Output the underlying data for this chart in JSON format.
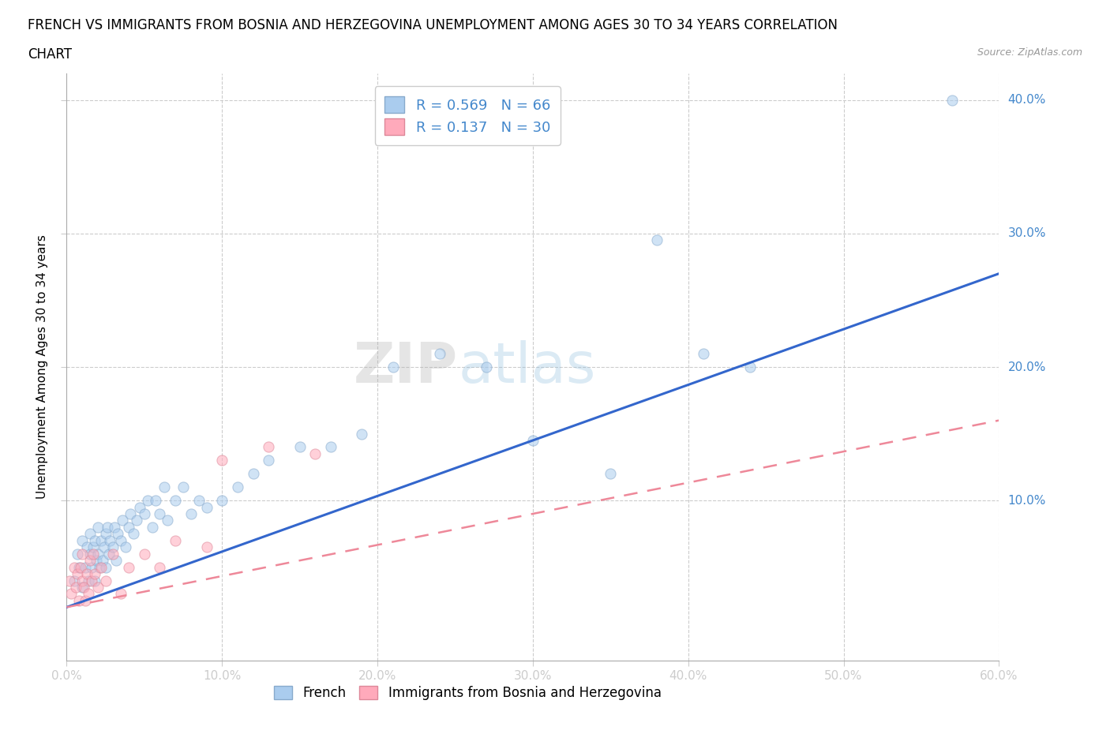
{
  "title_line1": "FRENCH VS IMMIGRANTS FROM BOSNIA AND HERZEGOVINA UNEMPLOYMENT AMONG AGES 30 TO 34 YEARS CORRELATION",
  "title_line2": "CHART",
  "source_text": "Source: ZipAtlas.com",
  "ylabel": "Unemployment Among Ages 30 to 34 years",
  "xlim": [
    0.0,
    0.6
  ],
  "ylim": [
    -0.02,
    0.42
  ],
  "xticks": [
    0.0,
    0.1,
    0.2,
    0.3,
    0.4,
    0.5,
    0.6
  ],
  "xticklabels": [
    "0.0%",
    "10.0%",
    "20.0%",
    "30.0%",
    "40.0%",
    "50.0%",
    "60.0%"
  ],
  "yticks": [
    0.1,
    0.2,
    0.3,
    0.4
  ],
  "yticklabels": [
    "10.0%",
    "20.0%",
    "30.0%",
    "40.0%"
  ],
  "grid_color": "#cccccc",
  "french_color": "#aaccee",
  "french_edge": "#88aacc",
  "bosnia_color": "#ffaabb",
  "bosnia_edge": "#dd8899",
  "french_R": 0.569,
  "french_N": 66,
  "bosnia_R": 0.137,
  "bosnia_N": 30,
  "legend_text_color": "#4488cc",
  "watermark_zip": "ZIP",
  "watermark_atlas": "atlas",
  "french_line_start_y": 0.02,
  "french_line_end_y": 0.27,
  "bosnia_line_start_y": 0.02,
  "bosnia_line_end_y": 0.16,
  "title_fontsize": 12,
  "axis_label_fontsize": 11,
  "tick_fontsize": 11,
  "marker_size": 90,
  "marker_alpha": 0.55,
  "line_color_french": "#3366cc",
  "line_color_bosnia": "#ee8899",
  "background_color": "#ffffff",
  "french_scatter_x": [
    0.005,
    0.007,
    0.008,
    0.01,
    0.01,
    0.012,
    0.013,
    0.014,
    0.015,
    0.015,
    0.016,
    0.017,
    0.018,
    0.018,
    0.019,
    0.02,
    0.02,
    0.021,
    0.022,
    0.023,
    0.024,
    0.025,
    0.025,
    0.026,
    0.027,
    0.028,
    0.03,
    0.031,
    0.032,
    0.033,
    0.035,
    0.036,
    0.038,
    0.04,
    0.041,
    0.043,
    0.045,
    0.047,
    0.05,
    0.052,
    0.055,
    0.057,
    0.06,
    0.063,
    0.065,
    0.07,
    0.075,
    0.08,
    0.085,
    0.09,
    0.1,
    0.11,
    0.12,
    0.13,
    0.15,
    0.17,
    0.19,
    0.21,
    0.24,
    0.27,
    0.3,
    0.35,
    0.38,
    0.41,
    0.44,
    0.57
  ],
  "french_scatter_y": [
    0.04,
    0.06,
    0.05,
    0.07,
    0.035,
    0.05,
    0.065,
    0.04,
    0.06,
    0.075,
    0.05,
    0.065,
    0.04,
    0.07,
    0.055,
    0.06,
    0.08,
    0.05,
    0.07,
    0.055,
    0.065,
    0.075,
    0.05,
    0.08,
    0.06,
    0.07,
    0.065,
    0.08,
    0.055,
    0.075,
    0.07,
    0.085,
    0.065,
    0.08,
    0.09,
    0.075,
    0.085,
    0.095,
    0.09,
    0.1,
    0.08,
    0.1,
    0.09,
    0.11,
    0.085,
    0.1,
    0.11,
    0.09,
    0.1,
    0.095,
    0.1,
    0.11,
    0.12,
    0.13,
    0.14,
    0.14,
    0.15,
    0.2,
    0.21,
    0.2,
    0.145,
    0.12,
    0.295,
    0.21,
    0.2,
    0.4
  ],
  "bosnia_scatter_x": [
    0.002,
    0.003,
    0.005,
    0.006,
    0.007,
    0.008,
    0.009,
    0.01,
    0.01,
    0.011,
    0.012,
    0.013,
    0.014,
    0.015,
    0.016,
    0.017,
    0.018,
    0.02,
    0.022,
    0.025,
    0.03,
    0.035,
    0.04,
    0.05,
    0.06,
    0.07,
    0.09,
    0.1,
    0.13,
    0.16
  ],
  "bosnia_scatter_y": [
    0.04,
    0.03,
    0.05,
    0.035,
    0.045,
    0.025,
    0.05,
    0.04,
    0.06,
    0.035,
    0.025,
    0.045,
    0.03,
    0.055,
    0.04,
    0.06,
    0.045,
    0.035,
    0.05,
    0.04,
    0.06,
    0.03,
    0.05,
    0.06,
    0.05,
    0.07,
    0.065,
    0.13,
    0.14,
    0.135
  ]
}
